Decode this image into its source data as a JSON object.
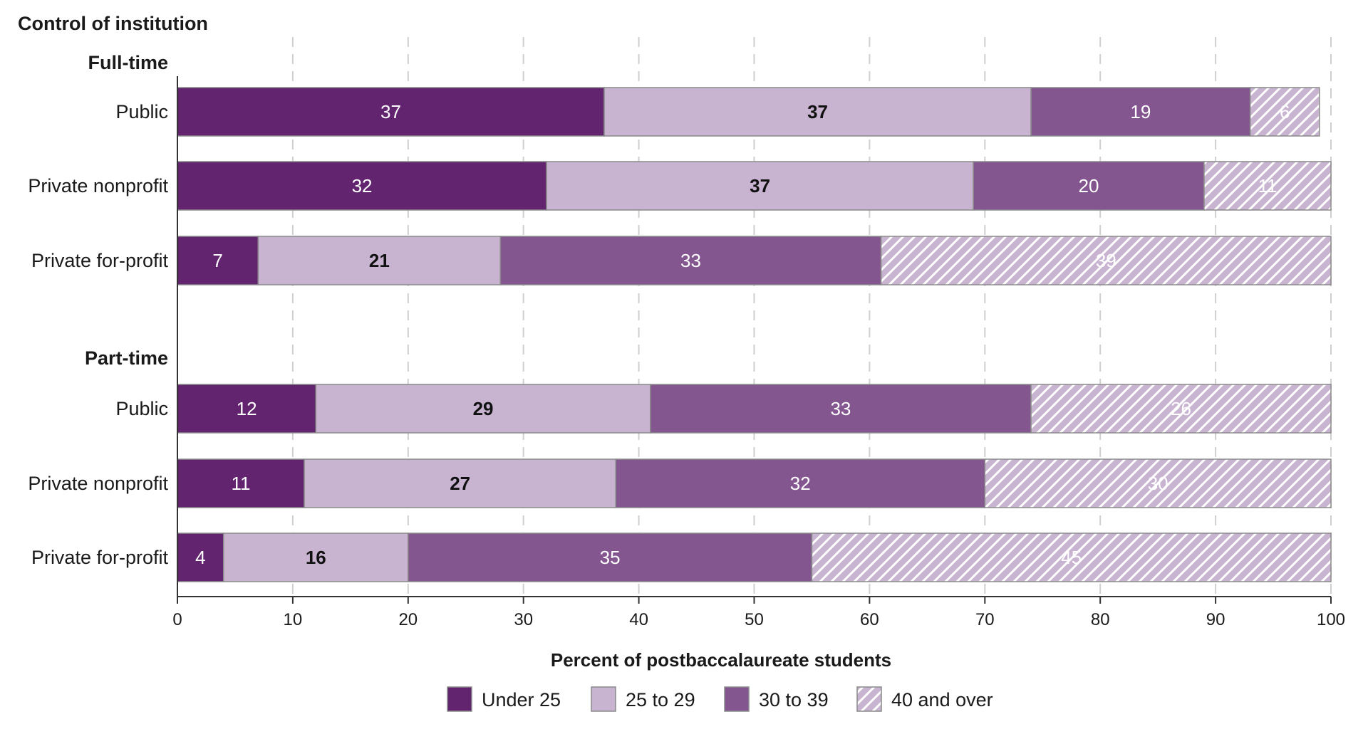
{
  "chart_data": {
    "type": "bar",
    "orientation": "horizontal",
    "stacked": true,
    "title": "Control of institution",
    "xlabel": "Percent of postbaccalaureate students",
    "xlim": [
      0,
      100
    ],
    "xticks": [
      0,
      10,
      20,
      30,
      40,
      50,
      60,
      70,
      80,
      90,
      100
    ],
    "grid": "vertical dashed",
    "legend_position": "bottom",
    "groups": [
      {
        "label": "Full-time",
        "rows": [
          {
            "label": "Public",
            "values": [
              37,
              37,
              19,
              6
            ]
          },
          {
            "label": "Private nonprofit",
            "values": [
              32,
              37,
              20,
              11
            ]
          },
          {
            "label": "Private for-profit",
            "values": [
              7,
              21,
              33,
              39
            ]
          }
        ]
      },
      {
        "label": "Part-time",
        "rows": [
          {
            "label": "Public",
            "values": [
              12,
              29,
              33,
              26
            ]
          },
          {
            "label": "Private nonprofit",
            "values": [
              11,
              27,
              32,
              30
            ]
          },
          {
            "label": "Private for-profit",
            "values": [
              4,
              16,
              35,
              45
            ]
          }
        ]
      }
    ],
    "series": [
      {
        "name": "Under 25",
        "color": "#62236f",
        "label_color": "#ffffff",
        "pattern": "solid"
      },
      {
        "name": "25 to 29",
        "color": "#c8b3d1",
        "label_color": "#111111",
        "pattern": "solid"
      },
      {
        "name": "30 to 39",
        "color": "#84568f",
        "label_color": "#ffffff",
        "pattern": "solid"
      },
      {
        "name": "40 and over",
        "color": "#c8b3d1",
        "label_color": "#ffffff",
        "pattern": "hatch"
      }
    ]
  }
}
